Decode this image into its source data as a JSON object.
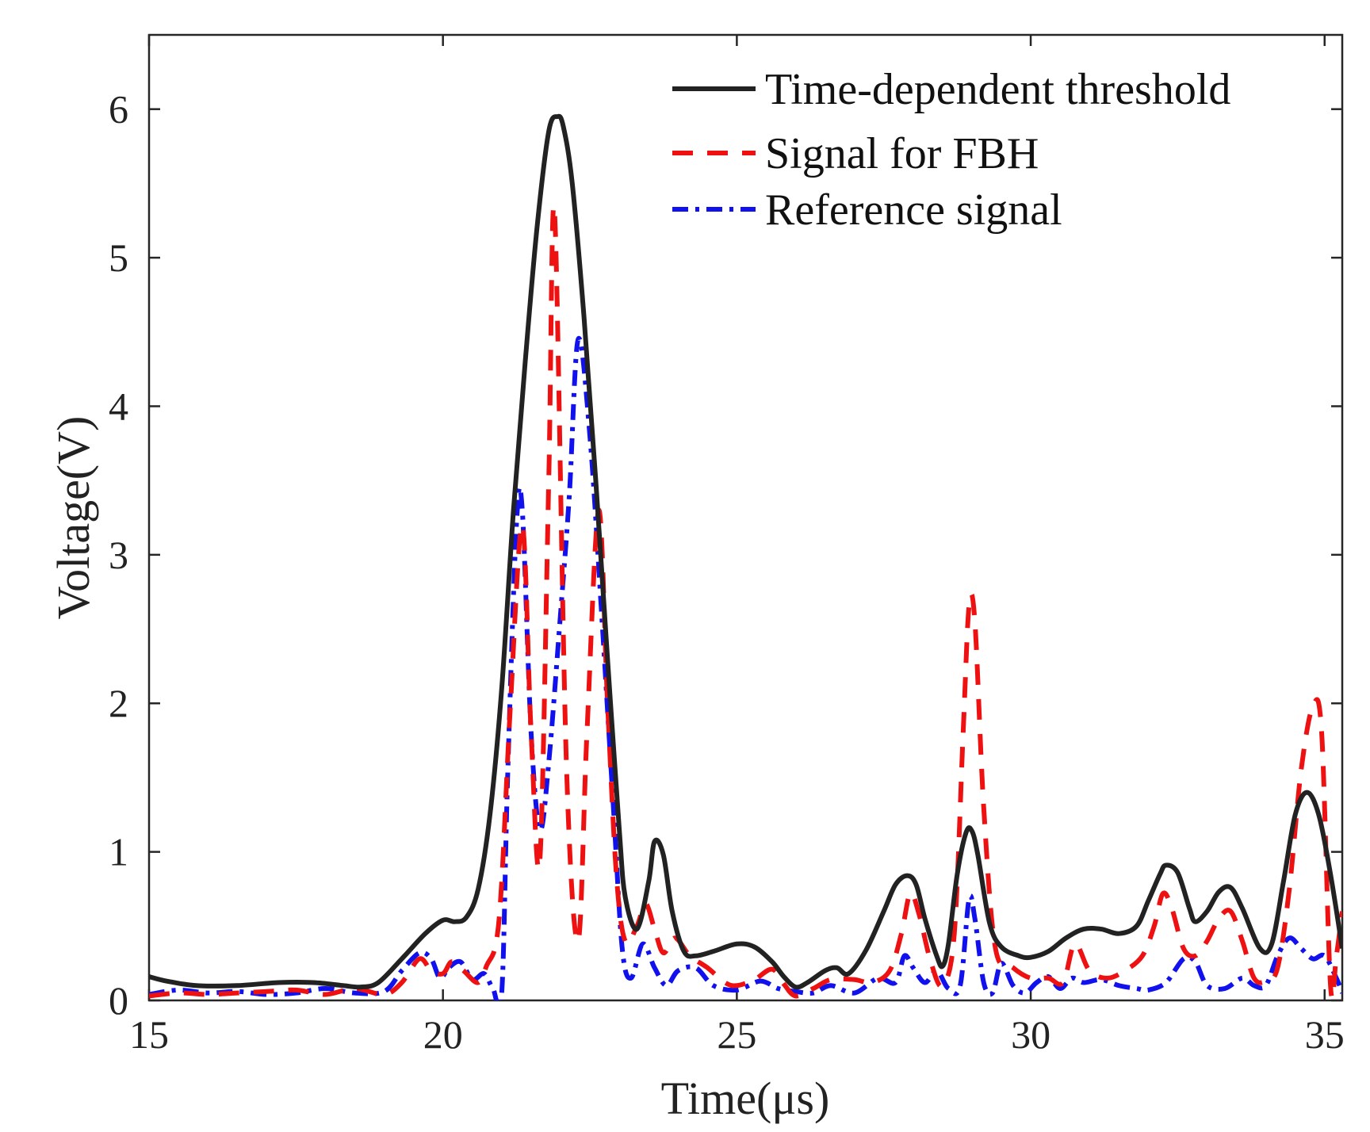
{
  "chart_data": {
    "type": "line",
    "title": "",
    "xlabel": "Time(μs)",
    "ylabel": "Voltage(V)",
    "xlim": [
      15,
      35.3
    ],
    "ylim": [
      0,
      6.5
    ],
    "xticks": [
      15,
      20,
      25,
      30,
      35
    ],
    "yticks": [
      0,
      1,
      2,
      3,
      4,
      5,
      6
    ],
    "grid": false,
    "legend_position": "top-right",
    "series": [
      {
        "name": "Time-dependent threshold",
        "color": "#222222",
        "style": "solid",
        "x": [
          15.0,
          15.3,
          15.8,
          16.5,
          17.2,
          17.8,
          18.3,
          18.6,
          18.9,
          19.3,
          19.7,
          20.0,
          20.2,
          20.4,
          20.6,
          20.8,
          21.0,
          21.2,
          21.4,
          21.6,
          21.8,
          21.95,
          22.05,
          22.2,
          22.4,
          22.6,
          22.8,
          23.0,
          23.1,
          23.3,
          23.5,
          23.6,
          23.75,
          23.9,
          24.1,
          24.3,
          24.6,
          25.0,
          25.3,
          25.6,
          25.8,
          26.0,
          26.2,
          26.5,
          26.7,
          26.9,
          27.2,
          27.5,
          27.7,
          27.9,
          28.05,
          28.2,
          28.4,
          28.5,
          28.6,
          28.75,
          28.9,
          29.0,
          29.1,
          29.3,
          29.5,
          29.8,
          30.0,
          30.3,
          30.6,
          30.9,
          31.2,
          31.5,
          31.8,
          32.0,
          32.2,
          32.3,
          32.5,
          32.7,
          32.8,
          33.0,
          33.2,
          33.4,
          33.6,
          33.9,
          34.1,
          34.3,
          34.5,
          34.7,
          34.9,
          35.1,
          35.3
        ],
        "y": [
          0.16,
          0.13,
          0.1,
          0.1,
          0.12,
          0.12,
          0.1,
          0.09,
          0.12,
          0.28,
          0.45,
          0.54,
          0.53,
          0.56,
          0.75,
          1.25,
          2.1,
          3.3,
          4.3,
          5.2,
          5.85,
          5.95,
          5.88,
          5.5,
          4.6,
          3.5,
          2.3,
          1.15,
          0.7,
          0.48,
          0.8,
          1.07,
          0.98,
          0.6,
          0.33,
          0.3,
          0.33,
          0.38,
          0.36,
          0.26,
          0.16,
          0.09,
          0.12,
          0.2,
          0.22,
          0.18,
          0.34,
          0.6,
          0.78,
          0.84,
          0.78,
          0.55,
          0.3,
          0.23,
          0.38,
          0.85,
          1.13,
          1.14,
          0.98,
          0.52,
          0.36,
          0.3,
          0.29,
          0.33,
          0.42,
          0.48,
          0.48,
          0.45,
          0.5,
          0.67,
          0.85,
          0.91,
          0.86,
          0.62,
          0.53,
          0.6,
          0.73,
          0.76,
          0.62,
          0.35,
          0.38,
          0.8,
          1.25,
          1.4,
          1.25,
          0.85,
          0.35
        ]
      },
      {
        "name": "Signal for FBH",
        "color": "#ee1111",
        "style": "dashed",
        "x": [
          15.0,
          15.5,
          16.0,
          16.5,
          17.0,
          17.5,
          18.0,
          18.5,
          19.0,
          19.3,
          19.6,
          19.8,
          20.0,
          20.15,
          20.35,
          20.6,
          20.75,
          20.9,
          21.0,
          21.15,
          21.35,
          21.5,
          21.65,
          21.8,
          21.9,
          22.1,
          22.3,
          22.45,
          22.65,
          22.8,
          22.95,
          23.1,
          23.3,
          23.45,
          23.6,
          23.75,
          23.95,
          24.2,
          24.5,
          24.8,
          25.0,
          25.3,
          25.6,
          25.8,
          26.0,
          26.3,
          26.6,
          27.0,
          27.3,
          27.6,
          27.8,
          27.95,
          28.1,
          28.3,
          28.5,
          28.7,
          28.85,
          28.95,
          29.05,
          29.2,
          29.4,
          29.7,
          30.0,
          30.3,
          30.55,
          30.75,
          31.0,
          31.3,
          31.6,
          31.9,
          32.1,
          32.25,
          32.4,
          32.6,
          32.8,
          33.0,
          33.2,
          33.4,
          33.6,
          33.8,
          34.0,
          34.2,
          34.4,
          34.6,
          34.8,
          34.95,
          35.1,
          35.2,
          35.3
        ],
        "y": [
          0.03,
          0.05,
          0.04,
          0.05,
          0.06,
          0.07,
          0.04,
          0.08,
          0.04,
          0.12,
          0.28,
          0.2,
          0.18,
          0.26,
          0.2,
          0.12,
          0.24,
          0.38,
          0.8,
          2.0,
          3.2,
          1.8,
          0.95,
          3.5,
          5.3,
          1.6,
          0.4,
          1.8,
          3.3,
          2.0,
          0.85,
          0.4,
          0.5,
          0.65,
          0.48,
          0.32,
          0.42,
          0.3,
          0.22,
          0.12,
          0.1,
          0.14,
          0.21,
          0.11,
          0.03,
          0.08,
          0.14,
          0.14,
          0.12,
          0.2,
          0.45,
          0.72,
          0.58,
          0.26,
          0.1,
          0.45,
          1.8,
          2.65,
          2.55,
          1.3,
          0.35,
          0.22,
          0.15,
          0.15,
          0.12,
          0.38,
          0.2,
          0.15,
          0.2,
          0.3,
          0.5,
          0.72,
          0.62,
          0.35,
          0.3,
          0.4,
          0.55,
          0.6,
          0.4,
          0.15,
          0.13,
          0.22,
          0.75,
          1.55,
          1.98,
          1.8,
          0.1,
          0.3,
          0.6
        ]
      },
      {
        "name": "Reference signal",
        "color": "#1111ee",
        "style": "dashdot",
        "x": [
          15.0,
          15.5,
          16.0,
          16.5,
          17.0,
          17.5,
          18.0,
          18.5,
          19.0,
          19.3,
          19.6,
          19.8,
          19.95,
          20.1,
          20.3,
          20.5,
          20.7,
          20.85,
          21.0,
          21.1,
          21.25,
          21.35,
          21.5,
          21.65,
          21.8,
          22.0,
          22.15,
          22.3,
          22.5,
          22.7,
          22.9,
          23.05,
          23.2,
          23.4,
          23.6,
          23.8,
          24.0,
          24.3,
          24.6,
          25.0,
          25.4,
          25.7,
          26.0,
          26.3,
          26.6,
          27.0,
          27.4,
          27.7,
          27.85,
          28.0,
          28.2,
          28.4,
          28.6,
          28.8,
          28.95,
          29.05,
          29.2,
          29.35,
          29.5,
          29.7,
          29.9,
          30.1,
          30.3,
          30.5,
          30.7,
          30.9,
          31.2,
          31.5,
          31.8,
          32.0,
          32.3,
          32.6,
          32.8,
          33.0,
          33.3,
          33.6,
          33.8,
          34.0,
          34.2,
          34.4,
          34.6,
          34.8,
          35.0,
          35.2,
          35.3
        ],
        "y": [
          0.04,
          0.07,
          0.05,
          0.06,
          0.04,
          0.05,
          0.08,
          0.05,
          0.06,
          0.2,
          0.32,
          0.28,
          0.15,
          0.22,
          0.26,
          0.14,
          0.18,
          0.08,
          0.05,
          1.5,
          3.2,
          3.3,
          1.8,
          1.15,
          1.6,
          2.6,
          3.4,
          4.45,
          3.8,
          2.6,
          1.3,
          0.35,
          0.15,
          0.38,
          0.22,
          0.1,
          0.2,
          0.22,
          0.1,
          0.07,
          0.13,
          0.08,
          0.06,
          0.05,
          0.1,
          0.05,
          0.15,
          0.12,
          0.3,
          0.22,
          0.12,
          0.2,
          0.08,
          0.1,
          0.68,
          0.55,
          0.12,
          0.05,
          0.25,
          0.1,
          0.05,
          0.12,
          0.16,
          0.08,
          0.15,
          0.12,
          0.14,
          0.1,
          0.08,
          0.07,
          0.12,
          0.28,
          0.26,
          0.1,
          0.08,
          0.15,
          0.1,
          0.1,
          0.3,
          0.42,
          0.35,
          0.28,
          0.3,
          0.15,
          0.05
        ]
      }
    ]
  }
}
